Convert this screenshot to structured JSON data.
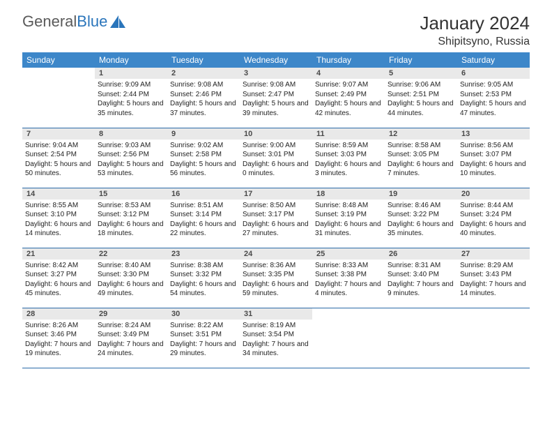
{
  "brand": {
    "part1": "General",
    "part2": "Blue"
  },
  "title": "January 2024",
  "location": "Shipitsyno, Russia",
  "colors": {
    "header_bg": "#3d87c9",
    "header_text": "#ffffff",
    "daynum_bg": "#e9e9e9",
    "daynum_text": "#4a4a4a",
    "row_border": "#2a6aa8",
    "brand_gray": "#5a5a5a",
    "brand_blue": "#2a75bb"
  },
  "weekdays": [
    "Sunday",
    "Monday",
    "Tuesday",
    "Wednesday",
    "Thursday",
    "Friday",
    "Saturday"
  ],
  "weeks": [
    [
      {
        "empty": true
      },
      {
        "n": "1",
        "sunrise": "9:09 AM",
        "sunset": "2:44 PM",
        "daylight": "5 hours and 35 minutes."
      },
      {
        "n": "2",
        "sunrise": "9:08 AM",
        "sunset": "2:46 PM",
        "daylight": "5 hours and 37 minutes."
      },
      {
        "n": "3",
        "sunrise": "9:08 AM",
        "sunset": "2:47 PM",
        "daylight": "5 hours and 39 minutes."
      },
      {
        "n": "4",
        "sunrise": "9:07 AM",
        "sunset": "2:49 PM",
        "daylight": "5 hours and 42 minutes."
      },
      {
        "n": "5",
        "sunrise": "9:06 AM",
        "sunset": "2:51 PM",
        "daylight": "5 hours and 44 minutes."
      },
      {
        "n": "6",
        "sunrise": "9:05 AM",
        "sunset": "2:53 PM",
        "daylight": "5 hours and 47 minutes."
      }
    ],
    [
      {
        "n": "7",
        "sunrise": "9:04 AM",
        "sunset": "2:54 PM",
        "daylight": "5 hours and 50 minutes."
      },
      {
        "n": "8",
        "sunrise": "9:03 AM",
        "sunset": "2:56 PM",
        "daylight": "5 hours and 53 minutes."
      },
      {
        "n": "9",
        "sunrise": "9:02 AM",
        "sunset": "2:58 PM",
        "daylight": "5 hours and 56 minutes."
      },
      {
        "n": "10",
        "sunrise": "9:00 AM",
        "sunset": "3:01 PM",
        "daylight": "6 hours and 0 minutes."
      },
      {
        "n": "11",
        "sunrise": "8:59 AM",
        "sunset": "3:03 PM",
        "daylight": "6 hours and 3 minutes."
      },
      {
        "n": "12",
        "sunrise": "8:58 AM",
        "sunset": "3:05 PM",
        "daylight": "6 hours and 7 minutes."
      },
      {
        "n": "13",
        "sunrise": "8:56 AM",
        "sunset": "3:07 PM",
        "daylight": "6 hours and 10 minutes."
      }
    ],
    [
      {
        "n": "14",
        "sunrise": "8:55 AM",
        "sunset": "3:10 PM",
        "daylight": "6 hours and 14 minutes."
      },
      {
        "n": "15",
        "sunrise": "8:53 AM",
        "sunset": "3:12 PM",
        "daylight": "6 hours and 18 minutes."
      },
      {
        "n": "16",
        "sunrise": "8:51 AM",
        "sunset": "3:14 PM",
        "daylight": "6 hours and 22 minutes."
      },
      {
        "n": "17",
        "sunrise": "8:50 AM",
        "sunset": "3:17 PM",
        "daylight": "6 hours and 27 minutes."
      },
      {
        "n": "18",
        "sunrise": "8:48 AM",
        "sunset": "3:19 PM",
        "daylight": "6 hours and 31 minutes."
      },
      {
        "n": "19",
        "sunrise": "8:46 AM",
        "sunset": "3:22 PM",
        "daylight": "6 hours and 35 minutes."
      },
      {
        "n": "20",
        "sunrise": "8:44 AM",
        "sunset": "3:24 PM",
        "daylight": "6 hours and 40 minutes."
      }
    ],
    [
      {
        "n": "21",
        "sunrise": "8:42 AM",
        "sunset": "3:27 PM",
        "daylight": "6 hours and 45 minutes."
      },
      {
        "n": "22",
        "sunrise": "8:40 AM",
        "sunset": "3:30 PM",
        "daylight": "6 hours and 49 minutes."
      },
      {
        "n": "23",
        "sunrise": "8:38 AM",
        "sunset": "3:32 PM",
        "daylight": "6 hours and 54 minutes."
      },
      {
        "n": "24",
        "sunrise": "8:36 AM",
        "sunset": "3:35 PM",
        "daylight": "6 hours and 59 minutes."
      },
      {
        "n": "25",
        "sunrise": "8:33 AM",
        "sunset": "3:38 PM",
        "daylight": "7 hours and 4 minutes."
      },
      {
        "n": "26",
        "sunrise": "8:31 AM",
        "sunset": "3:40 PM",
        "daylight": "7 hours and 9 minutes."
      },
      {
        "n": "27",
        "sunrise": "8:29 AM",
        "sunset": "3:43 PM",
        "daylight": "7 hours and 14 minutes."
      }
    ],
    [
      {
        "n": "28",
        "sunrise": "8:26 AM",
        "sunset": "3:46 PM",
        "daylight": "7 hours and 19 minutes."
      },
      {
        "n": "29",
        "sunrise": "8:24 AM",
        "sunset": "3:49 PM",
        "daylight": "7 hours and 24 minutes."
      },
      {
        "n": "30",
        "sunrise": "8:22 AM",
        "sunset": "3:51 PM",
        "daylight": "7 hours and 29 minutes."
      },
      {
        "n": "31",
        "sunrise": "8:19 AM",
        "sunset": "3:54 PM",
        "daylight": "7 hours and 34 minutes."
      },
      {
        "empty": true
      },
      {
        "empty": true
      },
      {
        "empty": true
      }
    ]
  ],
  "labels": {
    "sunrise": "Sunrise:",
    "sunset": "Sunset:",
    "daylight": "Daylight:"
  }
}
